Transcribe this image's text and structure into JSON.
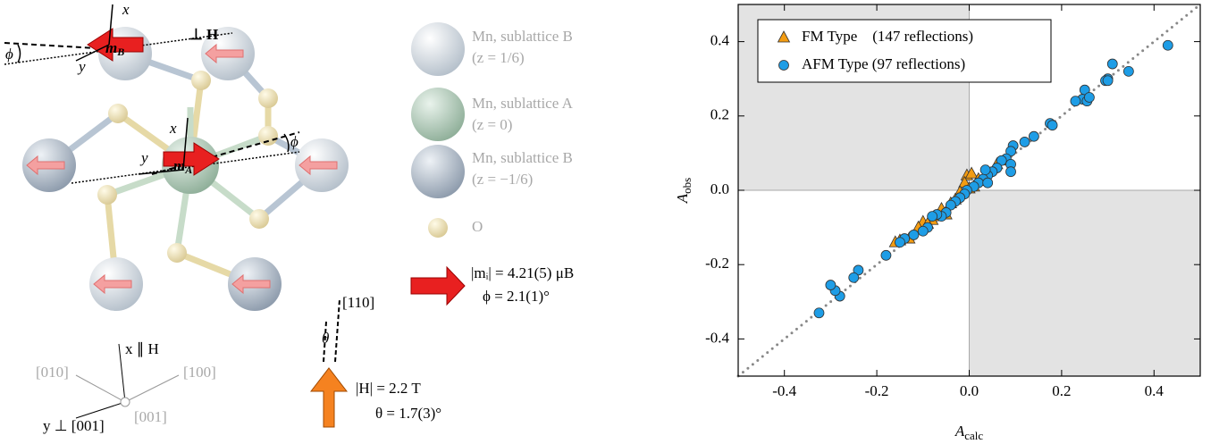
{
  "diagram": {
    "mB_axis_x": "x",
    "mB_axis_y": "y",
    "mB": {
      "main": "m",
      "sub": "B"
    },
    "perp_H": "⊥ H",
    "phi_top": "ϕ",
    "mA_axis_x": "x",
    "mA_axis_y": "y",
    "mA": {
      "main": "m",
      "sub": "A"
    },
    "phi_mid": "ϕ",
    "legend": [
      {
        "label": "Mn, sublattice B",
        "detail": "(z = 1/6)"
      },
      {
        "label": "Mn, sublattice A",
        "detail": "(z = 0)"
      },
      {
        "label": "Mn, sublattice B",
        "detail": "(z = −1/6)"
      },
      {
        "label": "O"
      }
    ],
    "moment": "|mᵢ| = 4.21(5) μB",
    "moment_phi": "ϕ = 2.1(1)°",
    "dir_110": "[110]",
    "theta": "θ",
    "field": "|H| = 2.2 T",
    "field_theta": "θ = 1.7(3)°",
    "axes": {
      "x": "x ∥ H",
      "d010": "[010]",
      "d100": "[100]",
      "d001": "[001]",
      "y": "y ⊥ [001]"
    }
  },
  "chart_data": {
    "type": "scatter",
    "xlabel": {
      "main": "A",
      "sub": "calc"
    },
    "ylabel": {
      "main": "A",
      "sub": "obs"
    },
    "xlim": [
      -0.5,
      0.5
    ],
    "ylim": [
      -0.5,
      0.5
    ],
    "xticks": [
      -0.4,
      -0.2,
      {
        "value": 0,
        "label": "0.0"
      },
      0.2,
      0.4
    ],
    "yticks": [
      -0.4,
      -0.2,
      {
        "value": 0,
        "label": "0.0"
      },
      0.2,
      0.4
    ],
    "quadrant_shading": true,
    "diagonal": true,
    "legend": "upper left",
    "series": [
      {
        "name": "FM Type    (147 reflections)",
        "color": "#f39c12",
        "marker": "triangle",
        "x": [
          -0.005,
          0.005,
          -0.01,
          0.0,
          -0.02,
          -0.03,
          -0.05,
          -0.06,
          -0.07,
          -0.08,
          -0.1,
          -0.11,
          -0.13,
          -0.15,
          -0.16,
          0.02,
          0.04,
          0.06,
          0.08,
          0.01,
          -0.04,
          -0.09,
          0.03
        ],
        "values": [
          0.04,
          0.045,
          0.02,
          0.005,
          -0.005,
          -0.025,
          -0.065,
          -0.05,
          -0.07,
          -0.08,
          -0.085,
          -0.1,
          -0.13,
          -0.135,
          -0.14,
          0.03,
          0.05,
          0.07,
          0.08,
          0.01,
          -0.035,
          -0.09,
          0.025
        ]
      },
      {
        "name": "AFM Type (97 reflections)",
        "color": "#1e9de6",
        "marker": "circle",
        "x": [
          0.43,
          0.31,
          0.345,
          0.3,
          0.295,
          0.25,
          0.245,
          0.255,
          0.23,
          0.175,
          0.18,
          0.14,
          0.12,
          0.095,
          0.09,
          0.08,
          0.09,
          0.09,
          0.07,
          0.06,
          0.05,
          0.04,
          0.03,
          0.02,
          0.01,
          0.035,
          0.04,
          -0.005,
          -0.01,
          -0.02,
          -0.03,
          -0.04,
          -0.05,
          -0.06,
          -0.07,
          -0.08,
          -0.09,
          -0.1,
          -0.12,
          -0.14,
          -0.15,
          -0.18,
          -0.24,
          -0.25,
          -0.28,
          -0.29,
          -0.3,
          -0.325,
          0.3,
          0.26
        ],
        "values": [
          0.39,
          0.34,
          0.32,
          0.3,
          0.295,
          0.27,
          0.245,
          0.24,
          0.24,
          0.18,
          0.175,
          0.145,
          0.13,
          0.12,
          0.105,
          0.085,
          0.07,
          0.05,
          0.08,
          0.06,
          0.05,
          0.04,
          0.03,
          0.02,
          0.01,
          0.055,
          0.02,
          0.0,
          -0.01,
          -0.02,
          -0.03,
          -0.04,
          -0.06,
          -0.07,
          -0.065,
          -0.07,
          -0.1,
          -0.11,
          -0.12,
          -0.13,
          -0.14,
          -0.175,
          -0.215,
          -0.235,
          -0.285,
          -0.27,
          -0.255,
          -0.33,
          0.295,
          0.25
        ]
      }
    ]
  }
}
